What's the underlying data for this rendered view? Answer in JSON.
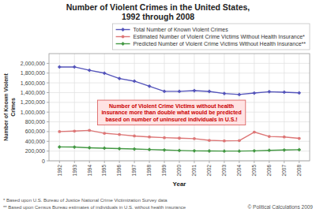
{
  "chart_data": {
    "type": "line",
    "title": "Number of Violent Crimes in the United States,\n1992 through 2008",
    "xlabel": "Year",
    "ylabel": "Number of Known Violent\nCrimes",
    "x": [
      1992,
      1993,
      1994,
      1995,
      1996,
      1997,
      1998,
      1999,
      2000,
      2001,
      2002,
      2003,
      2004,
      2005,
      2006,
      2007,
      2008
    ],
    "series": [
      {
        "name": "Total Number of Known Violent Crimes",
        "color": "#5555bb",
        "marker": "diamond",
        "line_style": "solid",
        "values": [
          1926017,
          1926020,
          1857670,
          1798790,
          1688540,
          1634770,
          1531044,
          1426044,
          1425486,
          1439480,
          1423677,
          1381259,
          1360088,
          1390745,
          1417745,
          1408337,
          1394024
        ]
      },
      {
        "name": "Estimated Number of Violent Crime Victims Without Health Insurance*",
        "color": "#dd7777",
        "marker": "circle",
        "line_style": "solid",
        "values": [
          600000,
          610000,
          625000,
          565000,
          540000,
          510000,
          490000,
          475000,
          465000,
          455000,
          420000,
          410000,
          415000,
          590000,
          500000,
          490000,
          460000
        ]
      },
      {
        "name": "Predicted Number of Violent Crime Victims Without Health Insurance**",
        "color": "#449944",
        "marker": "diamond",
        "line_style": "solid",
        "values": [
          285000,
          282000,
          268000,
          260000,
          250000,
          242000,
          232000,
          222000,
          212000,
          205000,
          202000,
          200000,
          200000,
          205000,
          215000,
          222000,
          228000
        ]
      }
    ],
    "xlim": [
      1991.3,
      2008.7
    ],
    "xticks": [
      1992,
      1993,
      1994,
      1995,
      1996,
      1997,
      1998,
      1999,
      2000,
      2001,
      2002,
      2003,
      2004,
      2005,
      2006,
      2007,
      2008
    ],
    "ylim": [
      0,
      2200000
    ],
    "yticks": [
      0,
      {
        "value": 200000,
        "label": "200,000"
      },
      {
        "value": 400000,
        "label": "400,000"
      },
      {
        "value": 600000,
        "label": "600,000"
      },
      {
        "value": 800000,
        "label": "800,000"
      },
      {
        "value": 1000000,
        "label": "1,000,000"
      },
      {
        "value": 1200000,
        "label": "1,200,000"
      },
      {
        "value": 1400000,
        "label": "1,400,000"
      },
      {
        "value": 1600000,
        "label": "1,600,000"
      },
      {
        "value": 1800000,
        "label": "1,800,000"
      },
      {
        "value": 2000000,
        "label": "2,000,000"
      }
    ],
    "grid": true,
    "legend": "upper right",
    "annotation": {
      "text": "Number of Violent Crime Victims without health\ninsurance more than double what would be predicted\nbased on number of uninsured individuals in U.S.!",
      "color": "#cc0000"
    },
    "footnotes": [
      "* Based upon U.S. Bureau of Justice National Crime Victimization Survey data",
      "** Based upon Census Bureau estimates of individuals in U.S. without health insurance"
    ],
    "copyright": "© Political Calculations 2009"
  }
}
